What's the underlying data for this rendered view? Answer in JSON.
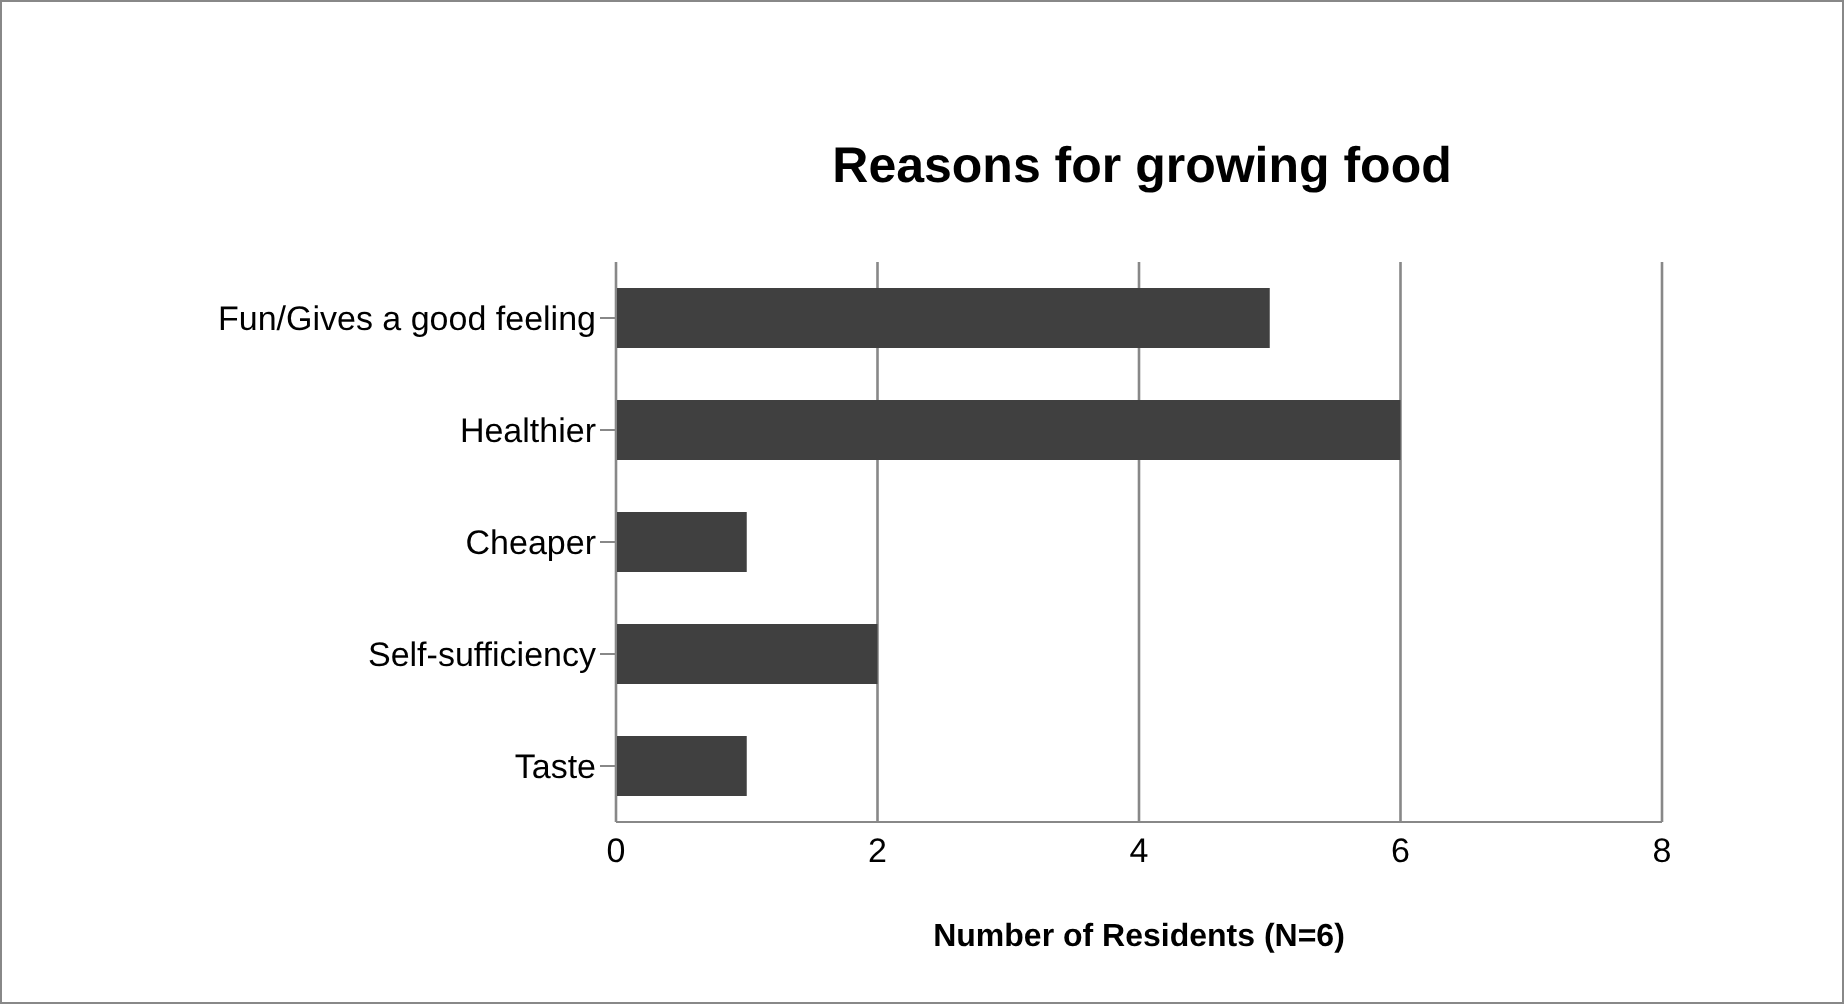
{
  "chart_data": {
    "type": "bar",
    "orientation": "horizontal",
    "title": "Reasons for growing food",
    "xlabel": "Number of Residents (N=6)",
    "categories": [
      "Fun/Gives a good feeling",
      "Healthier",
      "Cheaper",
      "Self-sufficiency",
      "Taste"
    ],
    "values": [
      5,
      6,
      1,
      2,
      1
    ],
    "color": "#404040",
    "xlim": [
      0,
      8
    ],
    "xticks": [
      0,
      2,
      4,
      6,
      8
    ],
    "grid": "x",
    "legend": false
  }
}
